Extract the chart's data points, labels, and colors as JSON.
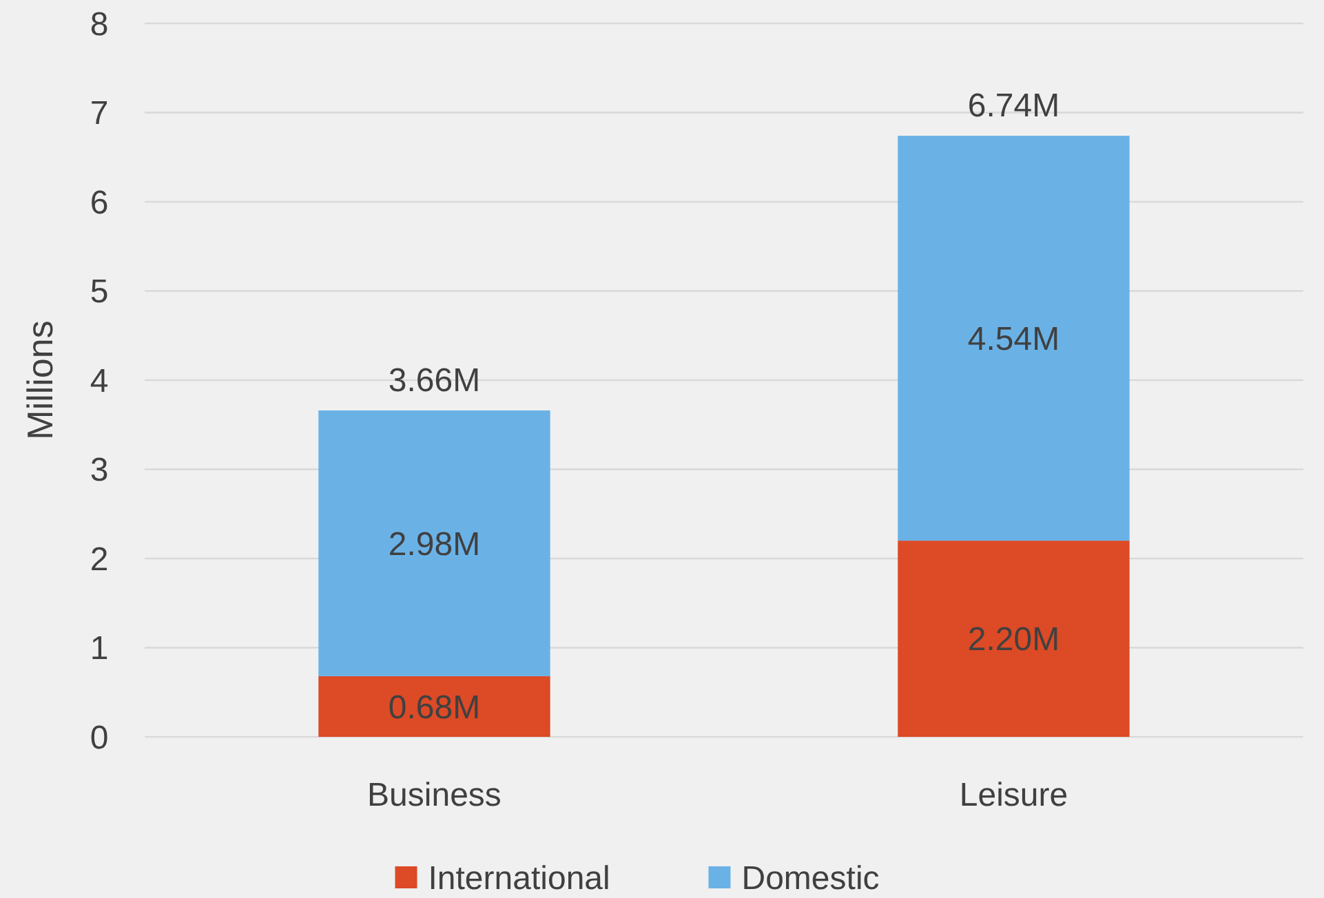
{
  "chart_data": {
    "type": "bar",
    "stacked": true,
    "ylabel": "Millions",
    "categories": [
      "Business",
      "Leisure"
    ],
    "series": [
      {
        "name": "International",
        "color": "#dc4a26",
        "values": [
          0.68,
          2.2
        ],
        "value_labels": [
          "0.68M",
          "2.20M"
        ]
      },
      {
        "name": "Domestic",
        "color": "#6ab2e6",
        "values": [
          2.98,
          4.54
        ],
        "value_labels": [
          "2.98M",
          "4.54M"
        ]
      }
    ],
    "totals": [
      "3.66M",
      "6.74M"
    ],
    "ylim": [
      0,
      8
    ],
    "yticks": [
      0,
      1,
      2,
      3,
      4,
      5,
      6,
      7,
      8
    ],
    "grid": "y",
    "legend": "bottom"
  }
}
